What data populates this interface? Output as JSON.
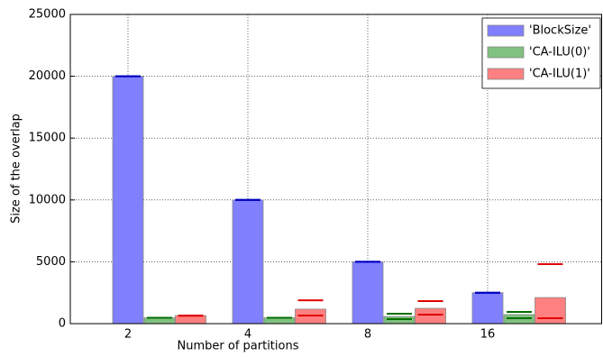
{
  "chart_data": {
    "type": "bar",
    "x_label": "Number of partitions",
    "y_label": "Size of the overlap",
    "categories": [
      "2",
      "4",
      "8",
      "16"
    ],
    "ylim": [
      0,
      25000
    ],
    "yticks": [
      0,
      5000,
      10000,
      15000,
      20000,
      25000
    ],
    "grid": true,
    "legend": "upper right",
    "series": [
      {
        "name": "'BlockSize'",
        "color": "#8080ff",
        "line_color": "#0000c0",
        "values": [
          20000,
          10000,
          5000,
          2500
        ],
        "min_values": [
          20000,
          10000,
          5000,
          2500
        ],
        "max_values": [
          20000,
          10000,
          5000,
          2500
        ]
      },
      {
        "name": "'CA-ILU(0)'",
        "color": "#80c080",
        "line_color": "#007000",
        "values": [
          470,
          470,
          580,
          730
        ],
        "min_values": [
          470,
          470,
          360,
          440
        ],
        "max_values": [
          470,
          470,
          800,
          950
        ]
      },
      {
        "name": "'CA-ILU(1)'",
        "color": "#ff8080",
        "line_color": "#e00000",
        "values": [
          650,
          1170,
          1240,
          2110
        ],
        "min_values": [
          650,
          660,
          730,
          440
        ],
        "max_values": [
          650,
          1890,
          1820,
          4810
        ]
      }
    ]
  }
}
